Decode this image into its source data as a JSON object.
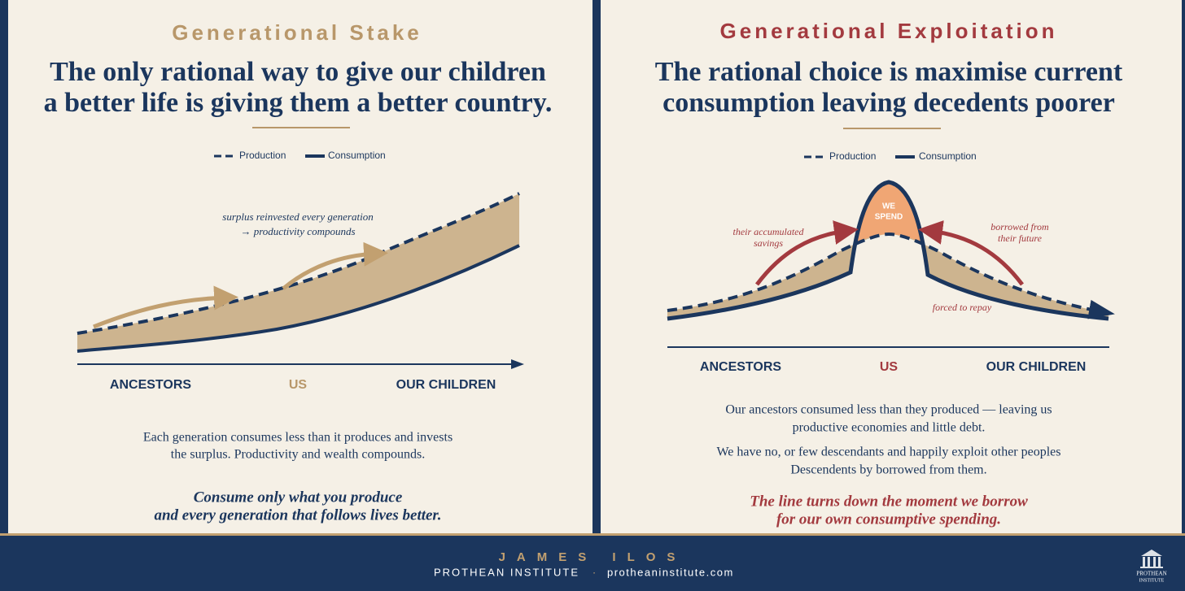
{
  "left": {
    "label": "Generational Stake",
    "headline": [
      "The only rational way to give our children",
      "a better life is giving them a better country."
    ],
    "legend": [
      "Production",
      "Consumption"
    ],
    "annotation": [
      "surplus reinvested every generation",
      "→ productivity compounds"
    ],
    "axis_labels": [
      "ANCESTORS",
      "US",
      "OUR CHILDREN"
    ],
    "body": [
      "Each generation consumes less than it produces and invests",
      "the surplus. Productivity and wealth compounds."
    ],
    "emphasis": [
      "Consume only what you produce",
      "and every generation that follows lives better."
    ]
  },
  "right": {
    "label": "Generational Exploitation",
    "headline": [
      "The rational choice is maximise current",
      "consumption leaving decedents poorer"
    ],
    "legend": [
      "Production",
      "Consumption"
    ],
    "annotations": {
      "savings": [
        "their accumulated",
        "savings"
      ],
      "spend": [
        "WE",
        "SPEND"
      ],
      "borrowed": [
        "borrowed from",
        "their future"
      ],
      "repay": "forced to repay"
    },
    "axis_labels": [
      "ANCESTORS",
      "US",
      "OUR CHILDREN"
    ],
    "body": [
      "Our ancestors consumed less than they produced — leaving us",
      "productive economies and little debt.",
      "We have no, or few descendants and happily exploit other peoples",
      "Descendents by borrowed from them."
    ],
    "emphasis": [
      "The line turns down the moment we borrow",
      "for our own consumptive spending."
    ]
  },
  "footer": {
    "author": "JAMES ILOS",
    "institute": "PROTHEAN INSTITUTE",
    "separator": "·",
    "website": "protheaninstitute.com",
    "logo": [
      "PROTHEAN",
      "INSTITUTE"
    ]
  }
}
